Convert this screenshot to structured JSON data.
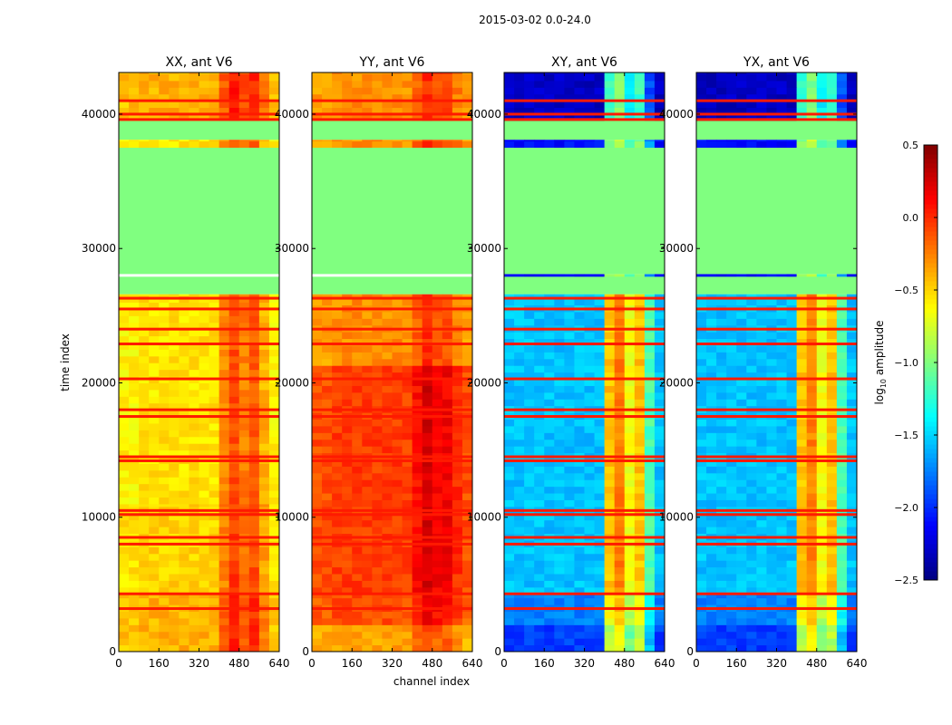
{
  "chart_data": {
    "type": "heatmap",
    "suptitle": "2015-03-02 0.0-24.0",
    "xlabel": "channel index",
    "ylabel": "time index",
    "xlim": [
      0,
      640
    ],
    "ylim": [
      0,
      43100
    ],
    "xticks": [
      "0",
      "160",
      "320",
      "480",
      "640"
    ],
    "xtick_values": [
      0,
      160,
      320,
      480,
      640
    ],
    "yticks": [
      "0",
      "10000",
      "20000",
      "30000",
      "40000"
    ],
    "ytick_values": [
      0,
      10000,
      20000,
      30000,
      40000
    ],
    "colorbar": {
      "label_prefix": "log",
      "label_sub": "10",
      "label_suffix": " amplitude",
      "range": [
        -2.5,
        0.5
      ],
      "colormap": "jet",
      "ticks": [
        "0.5",
        "0.0",
        "−0.5",
        "−1.0",
        "−1.5",
        "−2.0",
        "−2.5"
      ],
      "tick_values": [
        0.5,
        0.0,
        -0.5,
        -1.0,
        -1.5,
        -2.0,
        -2.5
      ]
    },
    "flagged_value": -1.0,
    "flagged_ranges": [
      [
        26600,
        27900
      ],
      [
        28100,
        37500
      ],
      [
        38100,
        39500
      ]
    ],
    "rfi_lines": [
      3200,
      4300,
      8000,
      8500,
      10200,
      10500,
      14200,
      14500,
      17500,
      18000,
      20300,
      22900,
      24000,
      25500,
      26300,
      39600,
      40000,
      41000
    ],
    "panels": [
      {
        "title": "XX, ant V6",
        "rows": [
          [
            0,
            4300,
            -0.45
          ],
          [
            4300,
            11000,
            -0.55
          ],
          [
            11000,
            26600,
            -0.6
          ],
          [
            37500,
            38100,
            -0.6
          ],
          [
            39500,
            43100,
            -0.45
          ]
        ],
        "channel_profile": [
          0,
          0,
          0.05,
          0.05,
          0.05,
          0.05,
          0.05,
          0.05,
          0.05,
          0.05,
          0.3,
          0.5,
          0.35,
          0.45,
          0.2,
          0.0
        ]
      },
      {
        "title": "YY, ant V6",
        "rows": [
          [
            0,
            2000,
            -0.4
          ],
          [
            2000,
            4300,
            -0.15
          ],
          [
            4300,
            21300,
            -0.1
          ],
          [
            21300,
            26600,
            -0.35
          ],
          [
            37500,
            38100,
            -0.35
          ],
          [
            39500,
            43100,
            -0.35
          ]
        ],
        "channel_profile": [
          0,
          0,
          0.05,
          0.05,
          0.05,
          0.05,
          0.05,
          0.05,
          0.05,
          0.05,
          0.2,
          0.35,
          0.25,
          0.25,
          0.1,
          0.0
        ]
      },
      {
        "title": "XY, ant V6",
        "rows": [
          [
            0,
            2000,
            -1.95
          ],
          [
            2000,
            4300,
            -1.75
          ],
          [
            4300,
            26600,
            -1.55
          ],
          [
            27900,
            28100,
            -2.1
          ],
          [
            37500,
            38100,
            -2.1
          ],
          [
            39500,
            43100,
            -2.3
          ]
        ],
        "channel_profile": [
          0,
          0,
          0,
          0,
          0,
          0,
          0,
          0,
          0,
          0,
          1.1,
          1.3,
          0.9,
          1.1,
          0.4,
          0
        ]
      },
      {
        "title": "YX, ant V6",
        "rows": [
          [
            0,
            2000,
            -1.95
          ],
          [
            2000,
            4300,
            -1.75
          ],
          [
            4300,
            26600,
            -1.55
          ],
          [
            27900,
            28100,
            -2.1
          ],
          [
            37500,
            38100,
            -2.1
          ],
          [
            39500,
            43100,
            -2.3
          ]
        ],
        "channel_profile": [
          0,
          0,
          0,
          0,
          0,
          0,
          0,
          0,
          0,
          0,
          1.1,
          1.3,
          0.9,
          1.1,
          0.4,
          0
        ]
      }
    ]
  }
}
